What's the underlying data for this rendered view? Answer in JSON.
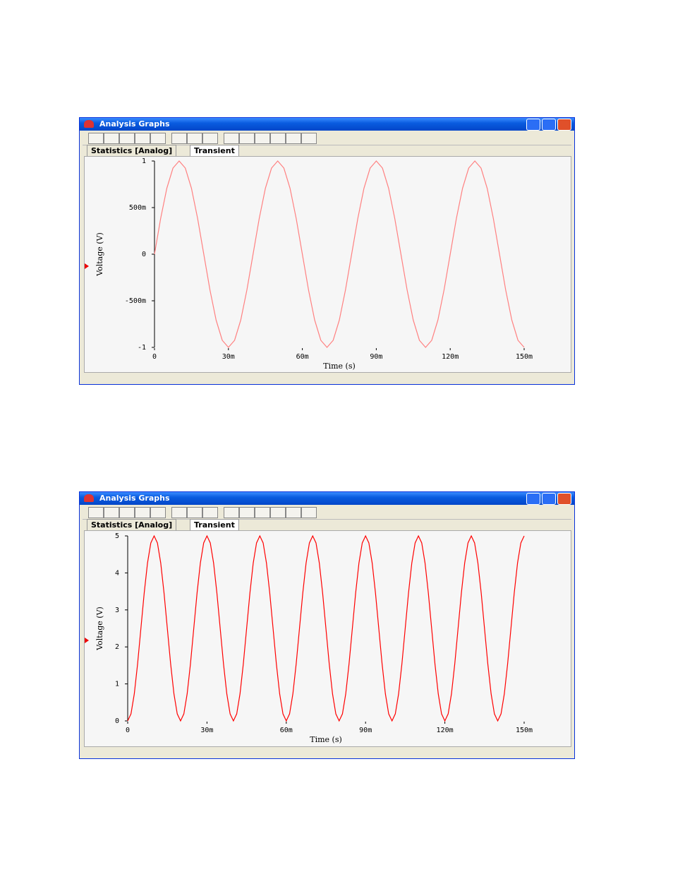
{
  "windows": [
    {
      "title": "Analysis Graphs",
      "tabs": [
        "Statistics [Analog]",
        "Transient"
      ]
    },
    {
      "title": "Analysis Graphs",
      "tabs": [
        "Statistics [Analog]",
        "Transient"
      ]
    }
  ],
  "chart_data": [
    {
      "type": "line",
      "x_label": "Time (s)",
      "y_label": "Voltage (V)",
      "color": "#ff8080",
      "xlim": [
        0,
        0.15
      ],
      "ylim": [
        -1,
        1
      ],
      "xticks": [
        0,
        {
          "value": 0.03,
          "label": "30m"
        },
        {
          "value": 0.06,
          "label": "60m"
        },
        {
          "value": 0.09,
          "label": "90m"
        },
        {
          "value": 0.12,
          "label": "120m"
        },
        {
          "value": 0.15,
          "label": "150m"
        }
      ],
      "yticks": [
        -1,
        {
          "value": -0.5,
          "label": "-500m"
        },
        0,
        {
          "value": 0.5,
          "label": "500m"
        },
        1
      ],
      "x": [
        0,
        0.0025,
        0.005,
        0.0075,
        0.01,
        0.0125,
        0.015,
        0.0175,
        0.02,
        0.0225,
        0.025,
        0.0275,
        0.03,
        0.0325,
        0.035,
        0.0375,
        0.04,
        0.0425,
        0.045,
        0.0475,
        0.05,
        0.0525,
        0.055,
        0.0575,
        0.06,
        0.0625,
        0.065,
        0.0675,
        0.07,
        0.0725,
        0.075,
        0.0775,
        0.08,
        0.0825,
        0.085,
        0.0875,
        0.09,
        0.0925,
        0.095,
        0.0975,
        0.1,
        0.1025,
        0.105,
        0.1075,
        0.11,
        0.1125,
        0.115,
        0.1175,
        0.12,
        0.1225,
        0.125,
        0.1275,
        0.13,
        0.1325,
        0.135,
        0.1375,
        0.14,
        0.1425,
        0.145,
        0.1475,
        0.15
      ],
      "values": [
        0,
        0.383,
        0.707,
        0.924,
        1,
        0.924,
        0.707,
        0.383,
        0,
        -0.383,
        -0.707,
        -0.924,
        -1,
        -0.924,
        -0.707,
        -0.383,
        0,
        0.383,
        0.707,
        0.924,
        1,
        0.924,
        0.707,
        0.383,
        0,
        -0.383,
        -0.707,
        -0.924,
        -1,
        -0.924,
        -0.707,
        -0.383,
        0,
        0.383,
        0.707,
        0.924,
        1,
        0.924,
        0.707,
        0.383,
        0,
        -0.383,
        -0.707,
        -0.924,
        -1,
        -0.924,
        -0.707,
        -0.383,
        0,
        0.383,
        0.707,
        0.924,
        1,
        0.924,
        0.707,
        0.383,
        0,
        -0.383,
        -0.707,
        -0.924,
        -1
      ]
    },
    {
      "type": "line",
      "x_label": "Time (s)",
      "y_label": "Voltage (V)",
      "color": "#ff0000",
      "xlim": [
        0,
        0.15
      ],
      "ylim": [
        0,
        5
      ],
      "xticks": [
        0,
        {
          "value": 0.03,
          "label": "30m"
        },
        {
          "value": 0.06,
          "label": "60m"
        },
        {
          "value": 0.09,
          "label": "90m"
        },
        {
          "value": 0.12,
          "label": "120m"
        },
        {
          "value": 0.15,
          "label": "150m"
        }
      ],
      "yticks": [
        0,
        1,
        2,
        3,
        4,
        5
      ],
      "x": [
        0,
        0.00125,
        0.0025,
        0.00375,
        0.005,
        0.00625,
        0.0075,
        0.00875,
        0.01,
        0.01125,
        0.0125,
        0.01375,
        0.015,
        0.01625,
        0.0175,
        0.01875,
        0.02,
        0.02125,
        0.0225,
        0.02375,
        0.025,
        0.02625,
        0.0275,
        0.02875,
        0.03,
        0.03125,
        0.0325,
        0.03375,
        0.035,
        0.03625,
        0.0375,
        0.03875,
        0.04,
        0.04125,
        0.0425,
        0.04375,
        0.045,
        0.04625,
        0.0475,
        0.04875,
        0.05,
        0.05125,
        0.0525,
        0.05375,
        0.055,
        0.05625,
        0.0575,
        0.05875,
        0.06,
        0.06125,
        0.0625,
        0.06375,
        0.065,
        0.06625,
        0.0675,
        0.06875,
        0.07,
        0.07125,
        0.0725,
        0.07375,
        0.075,
        0.07625,
        0.0775,
        0.07875,
        0.08,
        0.08125,
        0.0825,
        0.08375,
        0.085,
        0.08625,
        0.0875,
        0.08875,
        0.09,
        0.09125,
        0.0925,
        0.09375,
        0.095,
        0.09625,
        0.0975,
        0.09875,
        0.1,
        0.10125,
        0.1025,
        0.10375,
        0.105,
        0.10625,
        0.1075,
        0.10875,
        0.11,
        0.11125,
        0.1125,
        0.11375,
        0.115,
        0.11625,
        0.1175,
        0.11875,
        0.12,
        0.12125,
        0.1225,
        0.12375,
        0.125,
        0.12625,
        0.1275,
        0.12875,
        0.13,
        0.13125,
        0.1325,
        0.13375,
        0.135,
        0.13625,
        0.1375,
        0.13875,
        0.14,
        0.14125,
        0.1425,
        0.14375,
        0.145,
        0.14625,
        0.1475,
        0.14875,
        0.15
      ],
      "values": [
        0,
        0.19,
        0.732,
        1.543,
        2.5,
        3.457,
        4.268,
        4.81,
        5,
        4.81,
        4.268,
        3.457,
        2.5,
        1.543,
        0.732,
        0.19,
        0,
        0.19,
        0.732,
        1.543,
        2.5,
        3.457,
        4.268,
        4.81,
        5,
        4.81,
        4.268,
        3.457,
        2.5,
        1.543,
        0.732,
        0.19,
        0,
        0.19,
        0.732,
        1.543,
        2.5,
        3.457,
        4.268,
        4.81,
        5,
        4.81,
        4.268,
        3.457,
        2.5,
        1.543,
        0.732,
        0.19,
        0,
        0.19,
        0.732,
        1.543,
        2.5,
        3.457,
        4.268,
        4.81,
        5,
        4.81,
        4.268,
        3.457,
        2.5,
        1.543,
        0.732,
        0.19,
        0,
        0.19,
        0.732,
        1.543,
        2.5,
        3.457,
        4.268,
        4.81,
        5,
        4.81,
        4.268,
        3.457,
        2.5,
        1.543,
        0.732,
        0.19,
        0,
        0.19,
        0.732,
        1.543,
        2.5,
        3.457,
        4.268,
        4.81,
        5,
        4.81,
        4.268,
        3.457,
        2.5,
        1.543,
        0.732,
        0.19,
        0,
        0.19,
        0.732,
        1.543,
        2.5,
        3.457,
        4.268,
        4.81,
        5,
        4.81,
        4.268,
        3.457,
        2.5,
        1.543,
        0.732,
        0.19,
        0,
        0.19,
        0.732,
        1.543,
        2.5,
        3.457,
        4.268,
        4.81,
        5
      ]
    }
  ]
}
